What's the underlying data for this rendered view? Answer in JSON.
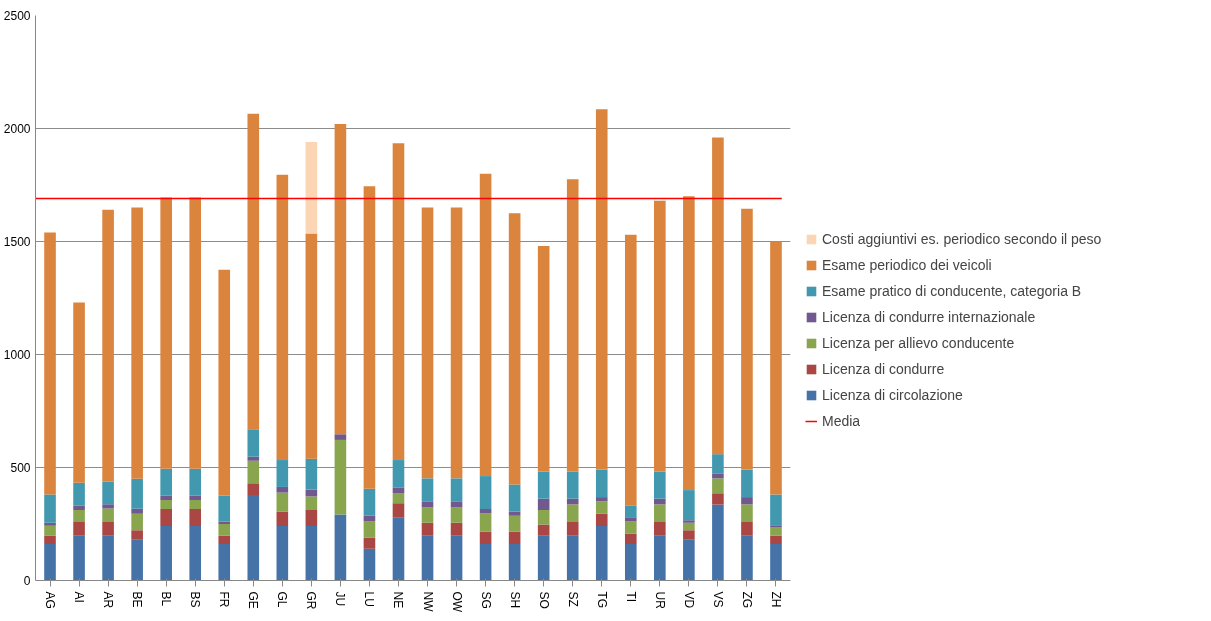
{
  "chart_data": {
    "type": "bar",
    "stacked": true,
    "categories": [
      "AG",
      "AI",
      "AR",
      "BE",
      "BL",
      "BS",
      "FR",
      "GE",
      "GL",
      "GR",
      "JU",
      "LU",
      "NE",
      "NW",
      "OW",
      "SG",
      "SH",
      "SO",
      "SZ",
      "TG",
      "TI",
      "UR",
      "VD",
      "VS",
      "ZG",
      "ZH"
    ],
    "series": [
      {
        "name": "Licenza di circolazione",
        "color": "#4572a7",
        "values": [
          161,
          198,
          198,
          180,
          241,
          241,
          161,
          378,
          241,
          241,
          292,
          141,
          278,
          198,
          198,
          161,
          161,
          198,
          198,
          241,
          161,
          198,
          180,
          336,
          198,
          161
        ]
      },
      {
        "name": "Licenza di condurre",
        "color": "#aa4643",
        "values": [
          37,
          61,
          61,
          42,
          75,
          75,
          37,
          52,
          64,
          71,
          null,
          48,
          64,
          57,
          57,
          56,
          56,
          50,
          61,
          56,
          47,
          61,
          42,
          50,
          61,
          37
        ]
      },
      {
        "name": "Licenza per allievo conducente",
        "color": "#89a54e",
        "values": [
          44,
          53,
          60,
          73,
          40,
          40,
          52,
          100,
          84,
          60,
          330,
          72,
          45,
          68,
          68,
          80,
          69,
          64,
          78,
          53,
          53,
          78,
          33,
          66,
          78,
          39
        ]
      },
      {
        "name": "Licenza di condurre internazionale",
        "color": "#71588f",
        "values": [
          13,
          19,
          18,
          22,
          19,
          19,
          11,
          18,
          25,
          30,
          25,
          25,
          25,
          25,
          25,
          19,
          19,
          50,
          25,
          19,
          19,
          25,
          12,
          20,
          32,
          7
        ]
      },
      {
        "name": "Esame pratico di conducente, categoria B",
        "color": "#4198af",
        "values": [
          126,
          102,
          100,
          133,
          119,
          119,
          115,
          121,
          119,
          137,
          null,
          120,
          121,
          104,
          104,
          146,
          120,
          119,
          119,
          122,
          51,
          119,
          133,
          87,
          122,
          136
        ]
      },
      {
        "name": "Esame periodico dei veicoli",
        "color": "#db843d",
        "values": [
          1159,
          797,
          1203,
          1200,
          1201,
          1201,
          999,
          1396,
          1262,
          996,
          1373,
          1339,
          1402,
          1198,
          1198,
          1338,
          1200,
          999,
          1294,
          1594,
          1199,
          1199,
          1300,
          1401,
          1154,
          1120
        ]
      },
      {
        "name": "Costi aggiuntivi es. periodico secondo il peso",
        "color": "#fcd5b5",
        "values": [
          null,
          null,
          null,
          null,
          null,
          null,
          null,
          null,
          null,
          405,
          null,
          null,
          null,
          null,
          null,
          null,
          null,
          null,
          null,
          null,
          null,
          null,
          null,
          null,
          null,
          null
        ]
      }
    ],
    "ylim": [
      0,
      2500
    ],
    "yticks": [
      0,
      500,
      1000,
      1500,
      2000,
      2500
    ],
    "grid": "y",
    "legend": "right",
    "ref_lines": [
      {
        "axis": "y",
        "value": 1690,
        "label": "Media",
        "color": "#ff0000"
      }
    ]
  }
}
